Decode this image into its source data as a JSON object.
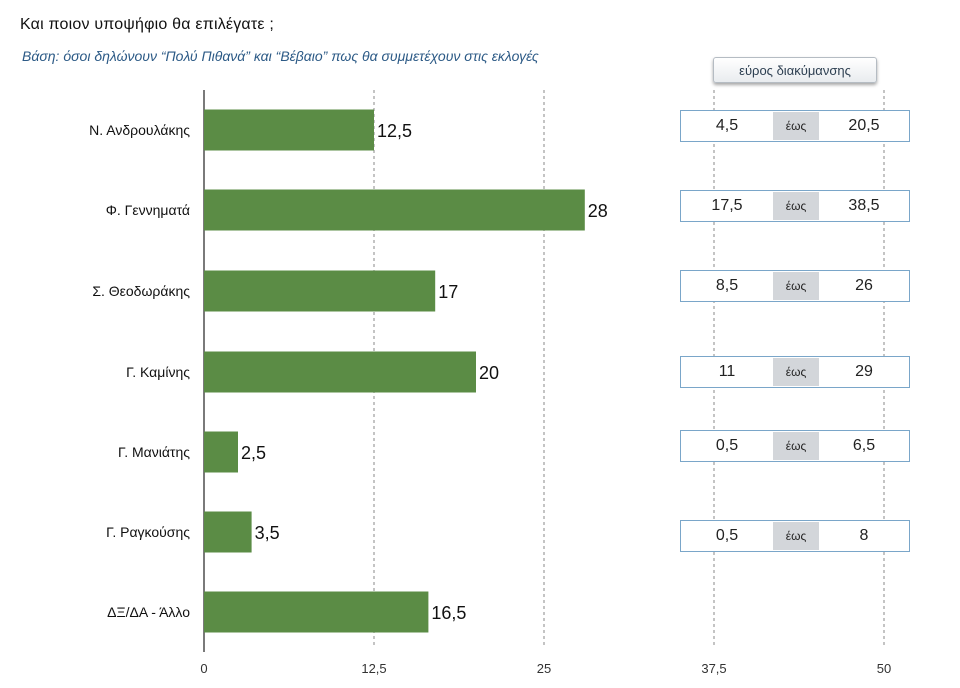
{
  "header": {
    "title": "Και ποιον υποψήφιο θα επιλέγατε ;",
    "subtitle": "Βάση: όσοι δηλώνουν “Πολύ Πιθανά” και “Βέβαιο” πως θα συμμετέχουν στις εκλογές",
    "range_header": "εύρος διακύμανσης"
  },
  "chart_data": {
    "type": "bar",
    "orientation": "horizontal",
    "title": "Και ποιον υποψήφιο θα επιλέγατε ;",
    "categories": [
      "Ν. Ανδρουλάκης",
      "Φ. Γεννηματά",
      "Σ. Θεοδωράκης",
      "Γ. Καμίνης",
      "Γ. Μανιάτης",
      "Γ. Ραγκούσης",
      "ΔΞ/ΔΑ - Άλλο"
    ],
    "values": [
      12.5,
      28,
      17,
      20,
      2.5,
      3.5,
      16.5
    ],
    "value_labels": [
      "12,5",
      "28",
      "17",
      "20",
      "2,5",
      "3,5",
      "16,5"
    ],
    "xlim": [
      0,
      50
    ],
    "x_ticks": [
      "0",
      "12,5",
      "25",
      "37,5",
      "50"
    ],
    "grid": "vertical dashed",
    "bar_color": "#5b8c45"
  },
  "ranges": {
    "connector": "έως",
    "items": [
      {
        "low": "4,5",
        "high": "20,5"
      },
      {
        "low": "17,5",
        "high": "38,5"
      },
      {
        "low": "8,5",
        "high": "26"
      },
      {
        "low": "11",
        "high": "29"
      },
      {
        "low": "0,5",
        "high": "6,5"
      },
      {
        "low": "0,5",
        "high": "8"
      }
    ]
  }
}
